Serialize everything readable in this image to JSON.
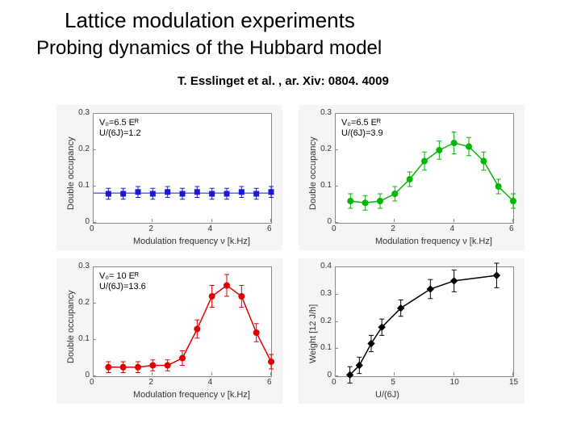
{
  "title_main": "Lattice modulation experiments",
  "title_sub": "Probing dynamics of the Hubbard model",
  "attribution": "T. Esslinget et al. , ar. Xiv: 0804. 4009",
  "panels": {
    "top_left": {
      "type": "scatter_errorbar",
      "inset_line1": "V₀=6.5 Eᴿ",
      "inset_line2": "U/(6J)=1.2",
      "ylabel": "Double occupancy",
      "xlabel": "Modulation frequency ν [k.Hz]",
      "xlim": [
        0,
        6
      ],
      "ylim": [
        0,
        0.3
      ],
      "xticks": [
        0,
        2,
        4,
        6
      ],
      "yticks": [
        0,
        0.1,
        0.2,
        0.3
      ],
      "color": "#1818d8",
      "marker": "square",
      "data": [
        {
          "x": 0.5,
          "y": 0.08,
          "err": 0.015
        },
        {
          "x": 1.0,
          "y": 0.08,
          "err": 0.015
        },
        {
          "x": 1.5,
          "y": 0.085,
          "err": 0.015
        },
        {
          "x": 2.0,
          "y": 0.08,
          "err": 0.015
        },
        {
          "x": 2.5,
          "y": 0.085,
          "err": 0.015
        },
        {
          "x": 3.0,
          "y": 0.08,
          "err": 0.015
        },
        {
          "x": 3.5,
          "y": 0.085,
          "err": 0.015
        },
        {
          "x": 4.0,
          "y": 0.08,
          "err": 0.015
        },
        {
          "x": 4.5,
          "y": 0.08,
          "err": 0.015
        },
        {
          "x": 5.0,
          "y": 0.085,
          "err": 0.015
        },
        {
          "x": 5.5,
          "y": 0.08,
          "err": 0.015
        },
        {
          "x": 6.0,
          "y": 0.085,
          "err": 0.015
        }
      ]
    },
    "top_right": {
      "type": "scatter_errorbar_line",
      "inset_line1": "V₀=6.5 Eᴿ",
      "inset_line2": "U/(6J)=3.9",
      "ylabel": "Double occupancy",
      "xlabel": "Modulation frequency ν [k.Hz]",
      "xlim": [
        0,
        6
      ],
      "ylim": [
        0,
        0.3
      ],
      "xticks": [
        0,
        2,
        4,
        6
      ],
      "yticks": [
        0,
        0.1,
        0.2,
        0.3
      ],
      "color": "#00b800",
      "marker": "circle",
      "data": [
        {
          "x": 0.5,
          "y": 0.06,
          "err": 0.02
        },
        {
          "x": 1.0,
          "y": 0.055,
          "err": 0.02
        },
        {
          "x": 1.5,
          "y": 0.06,
          "err": 0.02
        },
        {
          "x": 2.0,
          "y": 0.08,
          "err": 0.02
        },
        {
          "x": 2.5,
          "y": 0.12,
          "err": 0.02
        },
        {
          "x": 3.0,
          "y": 0.17,
          "err": 0.025
        },
        {
          "x": 3.5,
          "y": 0.2,
          "err": 0.025
        },
        {
          "x": 4.0,
          "y": 0.22,
          "err": 0.03
        },
        {
          "x": 4.5,
          "y": 0.21,
          "err": 0.025
        },
        {
          "x": 5.0,
          "y": 0.17,
          "err": 0.025
        },
        {
          "x": 5.5,
          "y": 0.1,
          "err": 0.02
        },
        {
          "x": 6.0,
          "y": 0.06,
          "err": 0.02
        }
      ]
    },
    "bottom_left": {
      "type": "scatter_errorbar_line",
      "inset_line1": "V₀= 10 Eᴿ",
      "inset_line2": "U/(6J)=13.6",
      "ylabel": "Double occupancy",
      "xlabel": "Modulation frequency ν [k.Hz]",
      "xlim": [
        0,
        6
      ],
      "ylim": [
        0,
        0.3
      ],
      "xticks": [
        0,
        2,
        4,
        6
      ],
      "yticks": [
        0,
        0.1,
        0.2,
        0.3
      ],
      "color": "#e00000",
      "marker": "circle",
      "data": [
        {
          "x": 0.5,
          "y": 0.025,
          "err": 0.015
        },
        {
          "x": 1.0,
          "y": 0.025,
          "err": 0.015
        },
        {
          "x": 1.5,
          "y": 0.025,
          "err": 0.015
        },
        {
          "x": 2.0,
          "y": 0.03,
          "err": 0.015
        },
        {
          "x": 2.5,
          "y": 0.03,
          "err": 0.015
        },
        {
          "x": 3.0,
          "y": 0.05,
          "err": 0.02
        },
        {
          "x": 3.5,
          "y": 0.13,
          "err": 0.025
        },
        {
          "x": 4.0,
          "y": 0.22,
          "err": 0.03
        },
        {
          "x": 4.5,
          "y": 0.25,
          "err": 0.03
        },
        {
          "x": 5.0,
          "y": 0.22,
          "err": 0.03
        },
        {
          "x": 5.5,
          "y": 0.12,
          "err": 0.025
        },
        {
          "x": 6.0,
          "y": 0.04,
          "err": 0.02
        }
      ]
    },
    "bottom_right": {
      "type": "scatter_errorbar_line",
      "ylabel": "Weight  [12 J/h]",
      "xlabel": "U/(6J)",
      "xlim": [
        0,
        15
      ],
      "ylim": [
        0,
        0.4
      ],
      "xticks": [
        0,
        5,
        10,
        15
      ],
      "yticks": [
        0,
        0.1,
        0.2,
        0.3,
        0.4
      ],
      "color": "#000000",
      "marker": "diamond",
      "data": [
        {
          "x": 1.2,
          "y": 0.005,
          "err": 0.03
        },
        {
          "x": 2.0,
          "y": 0.04,
          "err": 0.03
        },
        {
          "x": 3.0,
          "y": 0.12,
          "err": 0.03
        },
        {
          "x": 3.9,
          "y": 0.18,
          "err": 0.03
        },
        {
          "x": 5.5,
          "y": 0.25,
          "err": 0.03
        },
        {
          "x": 8.0,
          "y": 0.32,
          "err": 0.035
        },
        {
          "x": 10.0,
          "y": 0.35,
          "err": 0.04
        },
        {
          "x": 13.6,
          "y": 0.37,
          "err": 0.045
        }
      ]
    }
  }
}
